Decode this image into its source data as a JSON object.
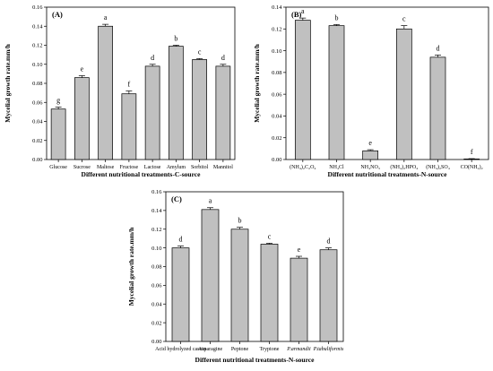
{
  "chart_data": [
    {
      "type": "bar",
      "panel_label": "(A)",
      "ylabel": "Mycelial growth rate.mm/h",
      "xlabel": "Different nutritional treatments-C-source",
      "ylim": [
        0,
        0.16
      ],
      "yticks": [
        "0.00",
        "0.02",
        "0.04",
        "0.06",
        "0.08",
        "0.10",
        "0.12",
        "0.14",
        "0.16"
      ],
      "categories": [
        "Glucose",
        "Sucrose",
        "Maltose",
        "Fructose",
        "Lactose",
        "Amylum",
        "Sorbitol",
        "Mannitol"
      ],
      "values": [
        0.053,
        0.086,
        0.14,
        0.069,
        0.098,
        0.119,
        0.105,
        0.098
      ],
      "errors": [
        0.002,
        0.002,
        0.002,
        0.003,
        0.002,
        0.001,
        0.001,
        0.002
      ],
      "letters": [
        "g",
        "e",
        "a",
        "f",
        "d",
        "b",
        "c",
        "d"
      ],
      "bar_color": "#c0c0c0"
    },
    {
      "type": "bar",
      "panel_label": "(B)",
      "ylabel": "Mycelial growth rate.mm/h",
      "xlabel": "Different nutritional treatments-N-source",
      "ylim": [
        0,
        0.14
      ],
      "yticks": [
        "0.00",
        "0.02",
        "0.04",
        "0.06",
        "0.08",
        "0.10",
        "0.12",
        "0.14"
      ],
      "categories": [
        "(NH₄)₂C₂O₄",
        "NH₄Cl",
        "NH₄NO₃",
        "(NH₄)₂HPO₄",
        "(NH₄)₂SO₄",
        "CO(NH₂)₂"
      ],
      "values": [
        0.128,
        0.123,
        0.008,
        0.12,
        0.094,
        0.0005
      ],
      "errors": [
        0.002,
        0.001,
        0.001,
        0.003,
        0.002,
        0.0003
      ],
      "letters": [
        "a",
        "b",
        "e",
        "c",
        "d",
        "f"
      ],
      "bar_color": "#c0c0c0"
    },
    {
      "type": "bar",
      "panel_label": "(C)",
      "ylabel": "Mycelial growth rate.mm/h",
      "xlabel": "Different nutritional treatments-N-source",
      "ylim": [
        0,
        0.16
      ],
      "yticks": [
        "0.00",
        "0.02",
        "0.04",
        "0.06",
        "0.08",
        "0.10",
        "0.12",
        "0.14",
        "0.16"
      ],
      "categories": [
        "Acid hydrolyzed casein",
        "Asparagine",
        "Peptone",
        "Tryptone",
        "P.armandii",
        "P.tabuliformis"
      ],
      "italic_categories": [
        false,
        false,
        false,
        false,
        true,
        true
      ],
      "values": [
        0.1,
        0.141,
        0.12,
        0.104,
        0.089,
        0.098
      ],
      "errors": [
        0.002,
        0.002,
        0.002,
        0.001,
        0.002,
        0.002
      ],
      "letters": [
        "d",
        "a",
        "b",
        "c",
        "e",
        "d"
      ],
      "bar_color": "#c0c0c0"
    }
  ]
}
